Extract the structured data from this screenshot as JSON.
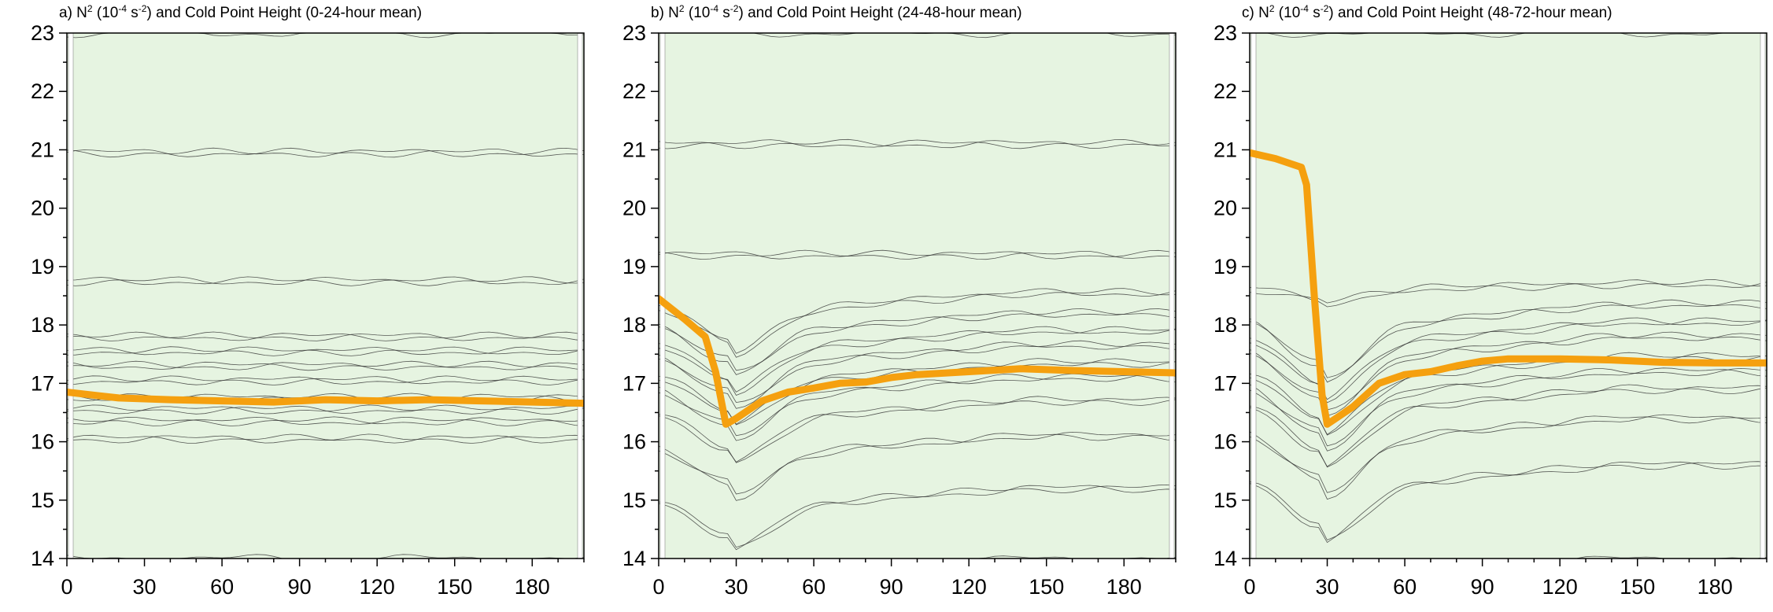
{
  "colors": {
    "cold_point_line": "#f5a00f",
    "frame": "#000000",
    "contour_line": "#2f2f2f",
    "fill_levels": [
      "#e6f4e1",
      "#cdebc5",
      "#b3e0a8",
      "#98d48a",
      "#80cb72",
      "#6dc45f",
      "#55b94c",
      "#3fae3b",
      "#24a22f",
      "#12912a",
      "#0a7c26",
      "#0a6b22",
      "#085a1c",
      "#064a17"
    ]
  },
  "chart_data": [
    {
      "type": "heatmap",
      "panel": "a",
      "title_prefix": "a) N",
      "title_sup1": "2",
      "title_mid": " (10",
      "title_sup2": "-4",
      "title_mid2": " s",
      "title_sup3": "-2",
      "title_suffix": ") and Cold Point Height  (0-24-hour mean)",
      "xlim": [
        0,
        200
      ],
      "ylim": [
        14,
        23
      ],
      "x_ticks": [
        "0",
        "30",
        "60",
        "90",
        "120",
        "150",
        "180"
      ],
      "y_ticks": [
        "14",
        "15",
        "16",
        "17",
        "18",
        "19",
        "20",
        "21",
        "22",
        "23"
      ],
      "cold_point_height": {
        "x": [
          0,
          20,
          40,
          60,
          80,
          100,
          120,
          140,
          160,
          180,
          200
        ],
        "y": [
          16.85,
          16.75,
          16.72,
          16.7,
          16.68,
          16.72,
          16.7,
          16.72,
          16.7,
          16.68,
          16.66
        ]
      },
      "field_bands": [
        {
          "from": 14.0,
          "to": 16.05,
          "level": 0
        },
        {
          "from": 16.05,
          "to": 16.35,
          "level": 1
        },
        {
          "from": 16.35,
          "to": 16.55,
          "level": 2
        },
        {
          "from": 16.55,
          "to": 16.75,
          "level": 3
        },
        {
          "from": 16.75,
          "to": 17.05,
          "level": 8
        },
        {
          "from": 17.05,
          "to": 17.3,
          "level": 9
        },
        {
          "from": 17.3,
          "to": 17.55,
          "level": 8
        },
        {
          "from": 17.55,
          "to": 17.8,
          "level": 7
        },
        {
          "from": 17.8,
          "to": 18.75,
          "level": 6
        },
        {
          "from": 18.75,
          "to": 20.95,
          "level": 5
        },
        {
          "from": 20.95,
          "to": 23.0,
          "level": 4
        }
      ]
    },
    {
      "type": "heatmap",
      "panel": "b",
      "title_prefix": "b) N",
      "title_sup1": "2",
      "title_mid": " (10",
      "title_sup2": "-4",
      "title_mid2": " s",
      "title_sup3": "-2",
      "title_suffix": ") and Cold Point Height  (24-48-hour mean)",
      "xlim": [
        0,
        200
      ],
      "ylim": [
        14,
        23
      ],
      "x_ticks": [
        "0",
        "30",
        "60",
        "90",
        "120",
        "150",
        "180"
      ],
      "y_ticks": [
        "14",
        "15",
        "16",
        "17",
        "18",
        "19",
        "20",
        "21",
        "22",
        "23"
      ],
      "cold_point_height": {
        "x": [
          0,
          10,
          18,
          22,
          26,
          30,
          40,
          50,
          60,
          70,
          80,
          90,
          100,
          120,
          140,
          160,
          180,
          200
        ],
        "y": [
          18.45,
          18.1,
          17.8,
          17.2,
          16.3,
          16.4,
          16.7,
          16.85,
          16.92,
          17.0,
          17.02,
          17.1,
          17.15,
          17.2,
          17.25,
          17.22,
          17.2,
          17.18
        ]
      },
      "field_bands": [
        {
          "from": 14.0,
          "to": 15.2,
          "level": 0
        },
        {
          "from": 15.2,
          "to": 16.1,
          "level": 1
        },
        {
          "from": 16.1,
          "to": 16.7,
          "level": 2
        },
        {
          "from": 16.7,
          "to": 17.1,
          "level": 3
        },
        {
          "from": 17.1,
          "to": 17.35,
          "level": 7
        },
        {
          "from": 17.35,
          "to": 17.65,
          "level": 10
        },
        {
          "from": 17.65,
          "to": 17.9,
          "level": 9
        },
        {
          "from": 17.9,
          "to": 18.2,
          "level": 7
        },
        {
          "from": 18.2,
          "to": 18.55,
          "level": 5
        },
        {
          "from": 18.55,
          "to": 19.2,
          "level": 4
        },
        {
          "from": 19.2,
          "to": 21.1,
          "level": 5
        },
        {
          "from": 21.1,
          "to": 23.0,
          "level": 4
        }
      ]
    },
    {
      "type": "heatmap",
      "panel": "c",
      "title_prefix": "c) N",
      "title_sup1": "2",
      "title_mid": " (10",
      "title_sup2": "-4",
      "title_mid2": " s",
      "title_sup3": "-2",
      "title_suffix": ") and Cold Point Height  (48-72-hour mean)",
      "xlim": [
        0,
        200
      ],
      "ylim": [
        14,
        23
      ],
      "x_ticks": [
        "0",
        "30",
        "60",
        "90",
        "120",
        "150",
        "180"
      ],
      "y_ticks": [
        "14",
        "15",
        "16",
        "17",
        "18",
        "19",
        "20",
        "21",
        "22",
        "23"
      ],
      "cold_point_height": {
        "x": [
          0,
          10,
          20,
          22,
          25,
          28,
          30,
          35,
          40,
          50,
          60,
          70,
          80,
          90,
          100,
          120,
          140,
          160,
          180,
          200
        ],
        "y": [
          20.95,
          20.85,
          20.7,
          20.4,
          18.5,
          16.8,
          16.3,
          16.45,
          16.6,
          17.0,
          17.15,
          17.2,
          17.3,
          17.38,
          17.42,
          17.42,
          17.4,
          17.36,
          17.35,
          17.35
        ]
      },
      "field_bands": [
        {
          "from": 14.0,
          "to": 15.6,
          "level": 0
        },
        {
          "from": 15.6,
          "to": 16.4,
          "level": 1
        },
        {
          "from": 16.4,
          "to": 16.9,
          "level": 2
        },
        {
          "from": 16.9,
          "to": 17.2,
          "level": 4
        },
        {
          "from": 17.2,
          "to": 17.45,
          "level": 9
        },
        {
          "from": 17.45,
          "to": 17.8,
          "level": 12
        },
        {
          "from": 17.8,
          "to": 18.05,
          "level": 10
        },
        {
          "from": 18.05,
          "to": 18.35,
          "level": 7
        },
        {
          "from": 18.35,
          "to": 18.7,
          "level": 5
        },
        {
          "from": 18.7,
          "to": 23.0,
          "level": 5
        }
      ]
    }
  ]
}
